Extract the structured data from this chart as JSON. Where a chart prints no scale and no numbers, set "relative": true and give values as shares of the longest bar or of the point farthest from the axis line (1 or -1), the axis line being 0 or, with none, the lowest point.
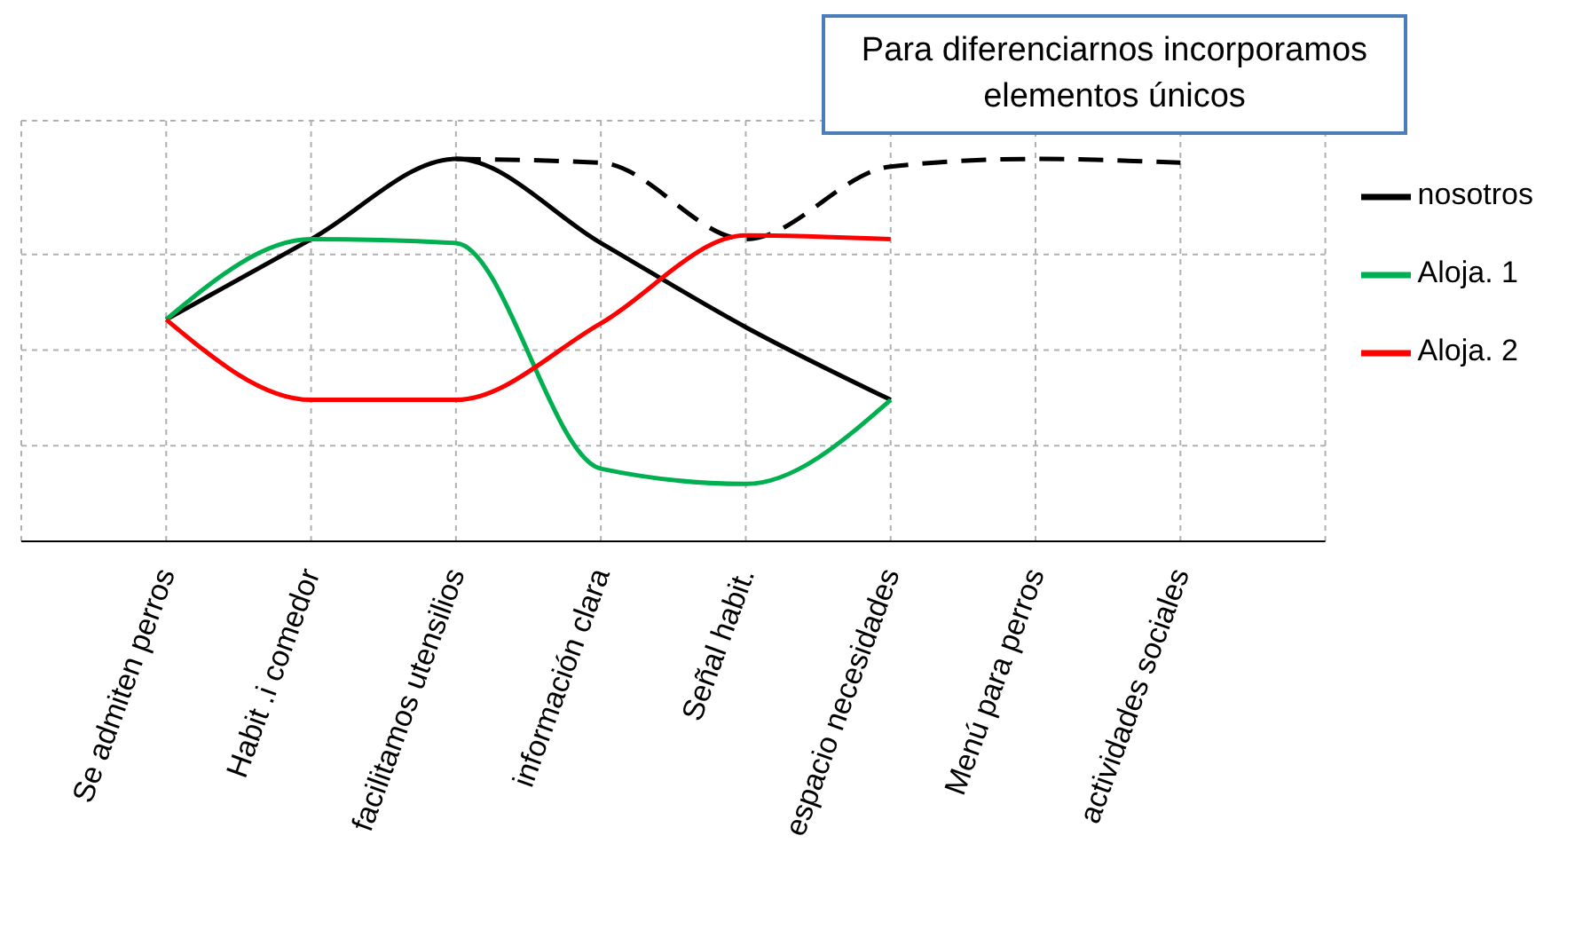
{
  "chart_data": {
    "type": "line",
    "relative": true,
    "categories": [
      "Se admiten perros",
      "Habit .i comedor",
      "facilitamos utensilios",
      "información clara",
      "Señal habit.",
      "espacio necesidades",
      "Menú para perros",
      "actividades sociales"
    ],
    "series": [
      {
        "name": "nosotros",
        "color": "#000000",
        "values": [
          0.58,
          0.79,
          1,
          0.78,
          0.56,
          0.37,
          null,
          null
        ]
      },
      {
        "color": "#000000",
        "line_style": "dashed",
        "values": [
          null,
          null,
          1,
          0.99,
          0.79,
          0.98,
          1,
          0.99
        ]
      },
      {
        "name": "Aloja. 1",
        "color": "#00b050",
        "values": [
          0.58,
          0.79,
          0.78,
          0.19,
          0.15,
          0.37,
          null,
          null
        ]
      },
      {
        "name": "Aloja. 2",
        "color": "#ff0000",
        "values": [
          0.58,
          0.37,
          0.37,
          0.57,
          0.8,
          0.79,
          null,
          null
        ]
      }
    ],
    "annotations": [
      "Para diferenciarnos incorporamos elementos únicos"
    ],
    "grid": true,
    "legend": "right",
    "marker": "none",
    "line_style": "solid"
  }
}
